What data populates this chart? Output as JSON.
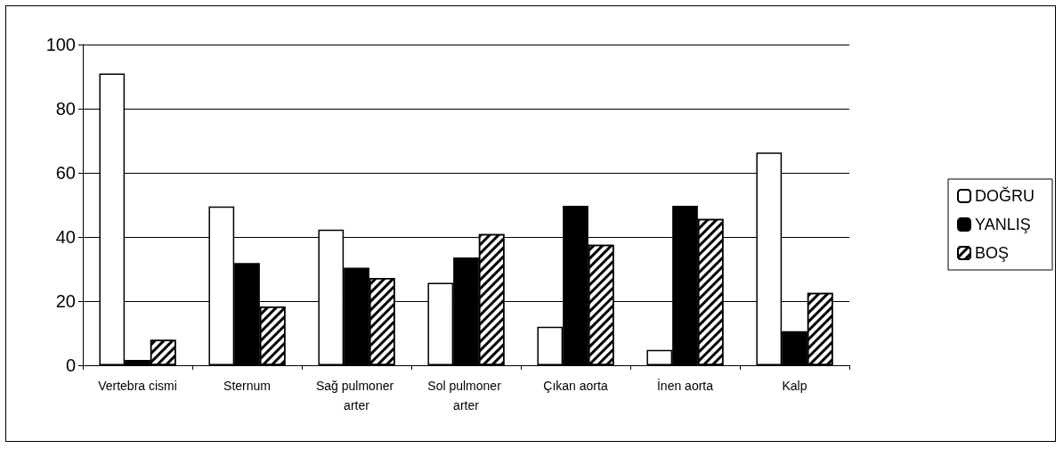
{
  "chart_data": {
    "type": "bar",
    "categories": [
      "Vertebra cismi",
      "Sternum",
      "Sağ pulmoner arter",
      "Sol pulmoner arter",
      "Çıkan aorta",
      "İnen aorta",
      "Kalp"
    ],
    "series": [
      {
        "name": "DOĞRU",
        "color": "#ffffff",
        "values": [
          91,
          49.5,
          42.3,
          25.7,
          12,
          4.8,
          66.3
        ]
      },
      {
        "name": "YANLIŞ",
        "color": "#000000",
        "values": [
          1.7,
          31.9,
          30.4,
          33.6,
          49.7,
          49.7,
          10.6
        ]
      },
      {
        "name": "BOŞ",
        "color": "#ffffff",
        "values": [
          7.9,
          18.3,
          27.2,
          40.9,
          37.6,
          45.6,
          22.6
        ]
      }
    ],
    "ylim": [
      0,
      100
    ],
    "yticks": [
      0,
      20,
      40,
      60,
      80,
      100
    ],
    "grid": "y",
    "legend": "right"
  }
}
